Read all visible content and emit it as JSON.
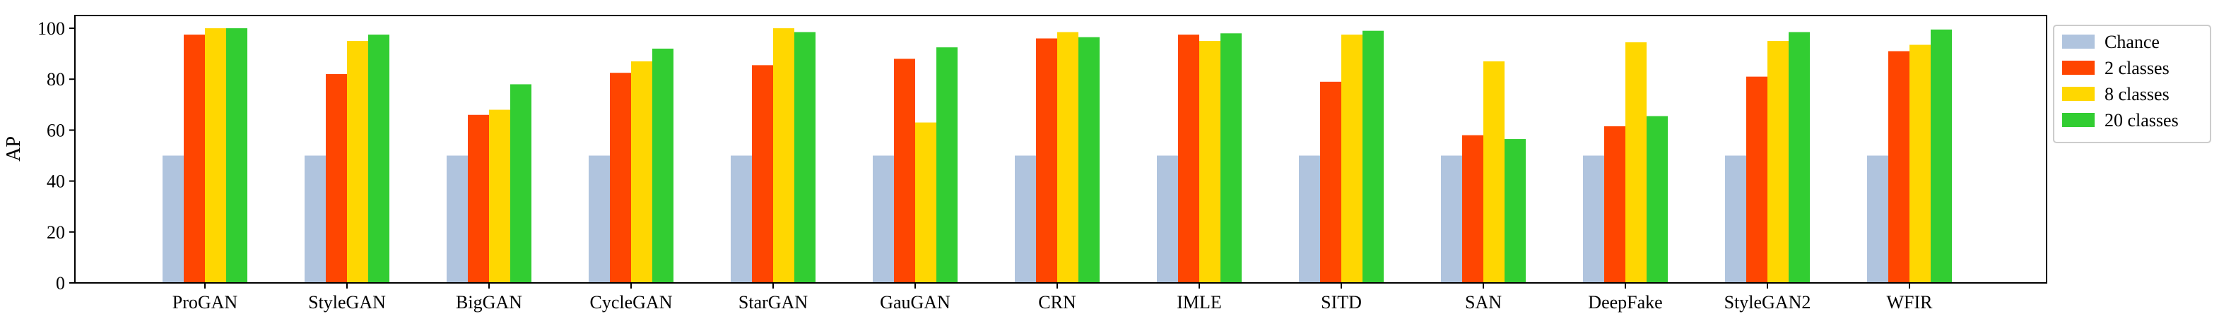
{
  "chart_data": {
    "type": "bar",
    "ylabel": "AP",
    "xlabel": "",
    "title": "",
    "ylim": [
      0,
      105
    ],
    "yticks": [
      0,
      20,
      40,
      60,
      80,
      100
    ],
    "legend_position": "top-right (outside plot)",
    "grid": false,
    "categories": [
      "ProGAN",
      "StyleGAN",
      "BigGAN",
      "CycleGAN",
      "StarGAN",
      "GauGAN",
      "CRN",
      "IMLE",
      "SITD",
      "SAN",
      "DeepFake",
      "StyleGAN2",
      "WFIR"
    ],
    "series": [
      {
        "name": "Chance",
        "color": "#b0c4de",
        "values": [
          50,
          50,
          50,
          50,
          50,
          50,
          50,
          50,
          50,
          50,
          50,
          50,
          50
        ]
      },
      {
        "name": "2 classes",
        "color": "#ff4500",
        "values": [
          97.5,
          82,
          66,
          82.5,
          85.5,
          88,
          96,
          97.5,
          79,
          58,
          61.5,
          81,
          91
        ]
      },
      {
        "name": "8 classes",
        "color": "#ffd700",
        "values": [
          100,
          95,
          68,
          87,
          100,
          63,
          98.5,
          95,
          97.5,
          87,
          94.5,
          95,
          93.5
        ]
      },
      {
        "name": "20 classes",
        "color": "#32cd32",
        "values": [
          100,
          97.5,
          78,
          92,
          98.5,
          92.5,
          96.5,
          98,
          99,
          56.5,
          65.5,
          98.5,
          99.5
        ]
      }
    ]
  }
}
